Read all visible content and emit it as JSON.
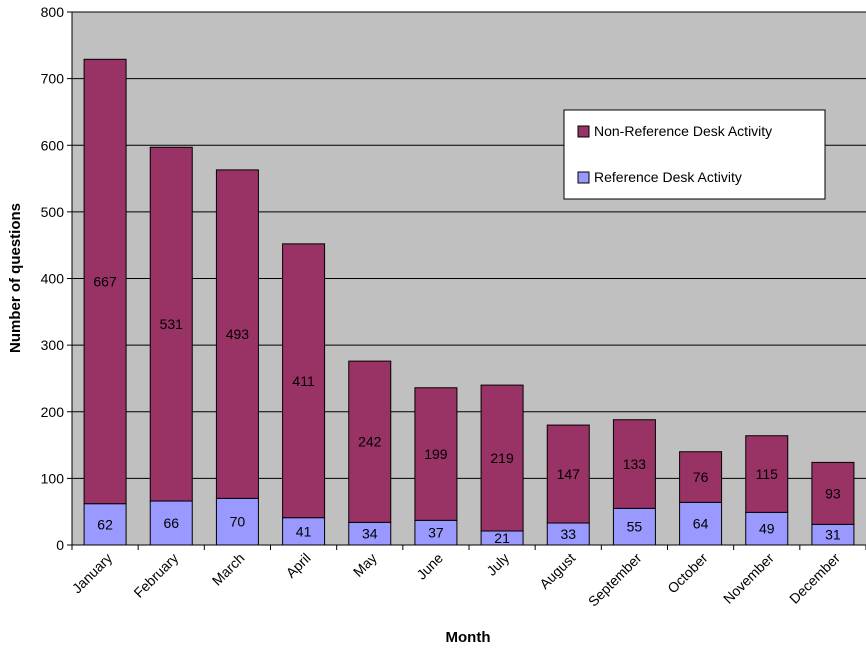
{
  "colors": {
    "plot_background": "#c0c0c0",
    "gridline": "#000000",
    "non_reference": "#993366",
    "reference": "#9999ff",
    "bar_outline": "#000000"
  },
  "chart_data": {
    "type": "bar",
    "stacked": true,
    "title": "",
    "xlabel": "Month",
    "ylabel": "Number of questions",
    "ylim": [
      0,
      800
    ],
    "yticks": [
      0,
      100,
      200,
      300,
      400,
      500,
      600,
      700,
      800
    ],
    "grid": true,
    "legend_position": "top-right",
    "categories": [
      "January",
      "February",
      "March",
      "April",
      "May",
      "June",
      "July",
      "August",
      "September",
      "October",
      "November",
      "December"
    ],
    "series": [
      {
        "name": "Reference Desk Activity",
        "color": "#9999ff",
        "values": [
          62,
          66,
          70,
          41,
          34,
          37,
          21,
          33,
          55,
          64,
          49,
          31
        ]
      },
      {
        "name": "Non-Reference Desk Activity",
        "color": "#993366",
        "values": [
          667,
          531,
          493,
          411,
          242,
          199,
          219,
          147,
          133,
          76,
          115,
          93
        ]
      }
    ],
    "legend_order": [
      1,
      0
    ]
  }
}
